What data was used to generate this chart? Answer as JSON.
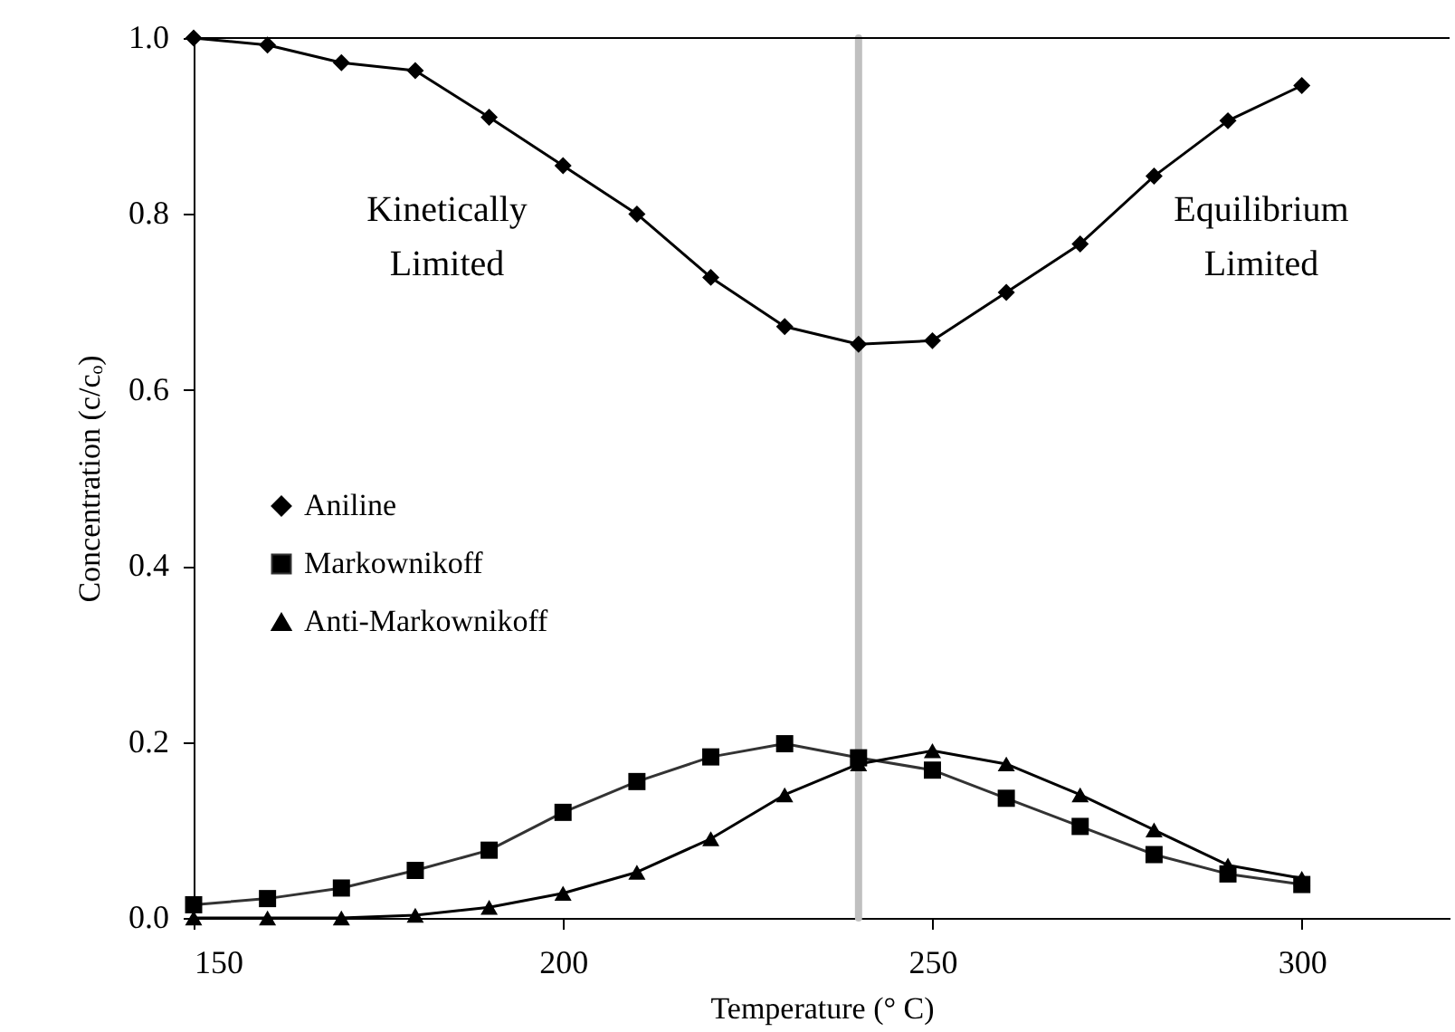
{
  "chart_data": {
    "type": "line",
    "xlabel": "Temperature (° C)",
    "ylabel": "Concentration (c/cₒ)",
    "x": [
      150,
      160,
      170,
      180,
      190,
      200,
      210,
      220,
      230,
      240,
      250,
      260,
      270,
      280,
      290,
      300
    ],
    "series": [
      {
        "name": "Aniline",
        "color": "#000000",
        "marker": "diamond",
        "values": [
          1.0,
          0.992,
          0.972,
          0.963,
          0.91,
          0.855,
          0.8,
          0.728,
          0.672,
          0.652,
          0.656,
          0.711,
          0.766,
          0.843,
          0.906,
          0.946
        ]
      },
      {
        "name": "Markownikoff",
        "color": "#333333",
        "marker": "square",
        "values": [
          0.015,
          0.022,
          0.034,
          0.054,
          0.077,
          0.12,
          0.155,
          0.183,
          0.198,
          0.182,
          0.168,
          0.136,
          0.104,
          0.072,
          0.05,
          0.038
        ]
      },
      {
        "name": "Anti-Markownikoff",
        "color": "#000000",
        "marker": "triangle",
        "values": [
          0.0,
          0.0,
          0.0,
          0.003,
          0.012,
          0.028,
          0.052,
          0.09,
          0.14,
          0.175,
          0.19,
          0.175,
          0.14,
          0.1,
          0.06,
          0.045
        ]
      }
    ],
    "xlim": [
      150,
      320
    ],
    "xticks": [
      150,
      200,
      250,
      300
    ],
    "ylim": [
      0,
      1.0
    ],
    "yticks": [
      {
        "value": 0,
        "label": "0.0"
      },
      {
        "value": 0.2,
        "label": "0.2"
      },
      {
        "value": 0.4,
        "label": "0.4"
      },
      {
        "value": 0.6,
        "label": "0.6"
      },
      {
        "value": 0.8,
        "label": "0.8"
      },
      {
        "value": 1.0,
        "label": "1.0"
      }
    ],
    "ref_lines": [
      {
        "axis": "x",
        "value": 240,
        "color": "#c0c0c0"
      }
    ],
    "annotations": [
      "Kinetically\nLimited",
      "Equilibrium\nLimited"
    ],
    "legend": "left",
    "grid": false,
    "line_style": "solid"
  }
}
